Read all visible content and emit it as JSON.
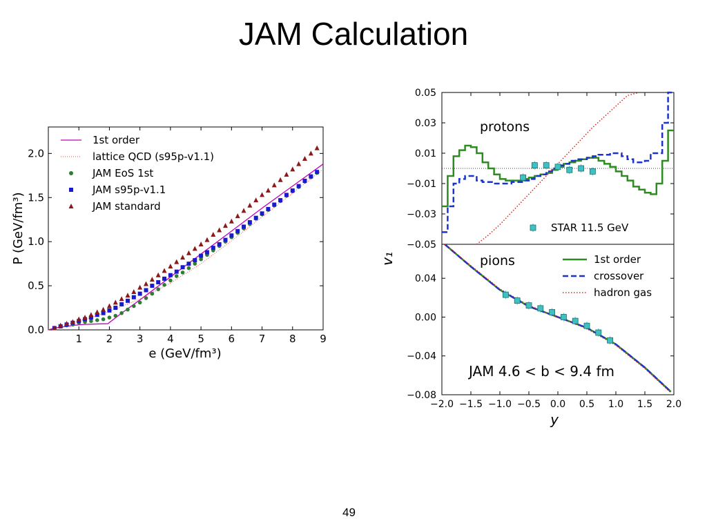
{
  "slide": {
    "title": "JAM Calculation",
    "page_number": "49"
  },
  "chart_data": [
    {
      "type": "line+scatter",
      "title": "",
      "xlabel": "e (GeV/fm³)",
      "ylabel": "P (GeV/fm³)",
      "xlim": [
        0,
        9
      ],
      "ylim": [
        0,
        2.3
      ],
      "x_ticks": [
        "1",
        "2",
        "3",
        "4",
        "5",
        "6",
        "7",
        "8",
        "9"
      ],
      "y_ticks": [
        "0.0",
        "0.5",
        "1.0",
        "1.5",
        "2.0"
      ],
      "legend": [
        "1st order",
        "lattice QCD (s95p-v1.1)",
        "JAM EoS 1st",
        "JAM s95p-v1.1",
        "JAM standard"
      ],
      "colors": {
        "first_order": "#bf00bf",
        "lattice": "#ff4040",
        "eos1st": "#2e7d32",
        "s95p": "#1a1acc",
        "standard": "#8b1a1a"
      },
      "series": [
        {
          "name": "1st order",
          "style": "line",
          "x": [
            0,
            0.2,
            0.5,
            0.8,
            1.1,
            1.4,
            1.7,
            1.95,
            2.4,
            3,
            4,
            5,
            6,
            7,
            8,
            9
          ],
          "y": [
            0,
            0.02,
            0.035,
            0.05,
            0.06,
            0.065,
            0.068,
            0.07,
            0.19,
            0.34,
            0.6,
            0.86,
            1.12,
            1.38,
            1.63,
            1.88
          ]
        },
        {
          "name": "lattice QCD (s95p-v1.1)",
          "style": "dotted",
          "x": [
            0,
            0.3,
            0.6,
            1,
            1.5,
            2,
            2.5,
            3,
            3.5,
            4,
            5,
            6,
            7,
            8,
            9
          ],
          "y": [
            0,
            0.03,
            0.06,
            0.1,
            0.15,
            0.21,
            0.28,
            0.35,
            0.44,
            0.53,
            0.75,
            1.01,
            1.28,
            1.55,
            1.82
          ]
        },
        {
          "name": "JAM EoS 1st",
          "style": "circle",
          "x": [
            0.2,
            0.4,
            0.6,
            0.8,
            1.0,
            1.2,
            1.4,
            1.6,
            1.8,
            2.0,
            2.2,
            2.4,
            2.6,
            2.8,
            3.0,
            3.2,
            3.4,
            3.6,
            3.8,
            4.0,
            4.2,
            4.4,
            4.6,
            4.8,
            5.0,
            5.2,
            5.4,
            5.6,
            5.8,
            6.0,
            6.2,
            6.4,
            6.6,
            6.8,
            7.0,
            7.2,
            7.4,
            7.6,
            7.8,
            8.0,
            8.2,
            8.4,
            8.6,
            8.8
          ],
          "y": [
            0.02,
            0.04,
            0.05,
            0.06,
            0.08,
            0.09,
            0.1,
            0.11,
            0.12,
            0.14,
            0.16,
            0.19,
            0.23,
            0.27,
            0.31,
            0.36,
            0.41,
            0.46,
            0.51,
            0.56,
            0.61,
            0.65,
            0.7,
            0.75,
            0.8,
            0.85,
            0.9,
            0.95,
            1.0,
            1.05,
            1.1,
            1.15,
            1.2,
            1.26,
            1.31,
            1.36,
            1.41,
            1.46,
            1.52,
            1.57,
            1.62,
            1.68,
            1.73,
            1.78
          ]
        },
        {
          "name": "JAM s95p-v1.1",
          "style": "square",
          "x": [
            0.2,
            0.4,
            0.6,
            0.8,
            1.0,
            1.2,
            1.4,
            1.6,
            1.8,
            2.0,
            2.2,
            2.4,
            2.6,
            2.8,
            3.0,
            3.2,
            3.4,
            3.6,
            3.8,
            4.0,
            4.2,
            4.4,
            4.6,
            4.8,
            5.0,
            5.2,
            5.4,
            5.6,
            5.8,
            6.0,
            6.2,
            6.4,
            6.6,
            6.8,
            7.0,
            7.2,
            7.4,
            7.6,
            7.8,
            8.0,
            8.2,
            8.4,
            8.6,
            8.8
          ],
          "y": [
            0.02,
            0.04,
            0.06,
            0.08,
            0.1,
            0.12,
            0.14,
            0.17,
            0.19,
            0.22,
            0.25,
            0.29,
            0.33,
            0.37,
            0.41,
            0.45,
            0.5,
            0.54,
            0.58,
            0.62,
            0.66,
            0.71,
            0.75,
            0.79,
            0.84,
            0.88,
            0.93,
            0.97,
            1.02,
            1.07,
            1.12,
            1.17,
            1.22,
            1.27,
            1.32,
            1.37,
            1.42,
            1.47,
            1.53,
            1.58,
            1.63,
            1.69,
            1.74,
            1.79
          ]
        },
        {
          "name": "JAM standard",
          "style": "triangle",
          "x": [
            0.2,
            0.4,
            0.6,
            0.8,
            1.0,
            1.2,
            1.4,
            1.6,
            1.8,
            2.0,
            2.2,
            2.4,
            2.6,
            2.8,
            3.0,
            3.2,
            3.4,
            3.6,
            3.8,
            4.0,
            4.2,
            4.4,
            4.6,
            4.8,
            5.0,
            5.2,
            5.4,
            5.6,
            5.8,
            6.0,
            6.2,
            6.4,
            6.6,
            6.8,
            7.0,
            7.2,
            7.4,
            7.6,
            7.8,
            8.0,
            8.2,
            8.4,
            8.6,
            8.8
          ],
          "y": [
            0.02,
            0.05,
            0.07,
            0.09,
            0.12,
            0.14,
            0.17,
            0.2,
            0.23,
            0.27,
            0.31,
            0.35,
            0.39,
            0.43,
            0.48,
            0.52,
            0.57,
            0.62,
            0.67,
            0.72,
            0.77,
            0.82,
            0.87,
            0.92,
            0.97,
            1.02,
            1.08,
            1.13,
            1.18,
            1.23,
            1.29,
            1.35,
            1.41,
            1.47,
            1.53,
            1.58,
            1.64,
            1.7,
            1.76,
            1.82,
            1.88,
            1.94,
            2.0,
            2.06
          ]
        }
      ]
    },
    {
      "type": "line+scatter",
      "panel": "protons",
      "ylabel": "v₁",
      "xlim": [
        -2,
        2
      ],
      "ylim": [
        -0.05,
        0.05
      ],
      "y_ticks": [
        "0.05",
        "0.03",
        "0.01",
        "−0.01",
        "−0.03",
        "−0.05"
      ],
      "y_tick_values": [
        0.05,
        0.03,
        0.01,
        -0.01,
        -0.03,
        -0.05
      ],
      "legend": [
        "STAR 11.5 GeV"
      ],
      "series": [
        {
          "name": "1st order",
          "style": "step",
          "color": "#2e8b22",
          "x": [
            -2.0,
            -1.9,
            -1.8,
            -1.7,
            -1.6,
            -1.5,
            -1.4,
            -1.3,
            -1.2,
            -1.1,
            -1.0,
            -0.9,
            -0.8,
            -0.7,
            -0.6,
            -0.5,
            -0.4,
            -0.3,
            -0.2,
            -0.1,
            0.0,
            0.1,
            0.2,
            0.3,
            0.4,
            0.5,
            0.6,
            0.7,
            0.8,
            0.9,
            1.0,
            1.1,
            1.2,
            1.3,
            1.4,
            1.5,
            1.6,
            1.7,
            1.8,
            1.9
          ],
          "y": [
            -0.025,
            -0.005,
            0.008,
            0.012,
            0.015,
            0.014,
            0.01,
            0.004,
            0.0,
            -0.004,
            -0.007,
            -0.008,
            -0.008,
            -0.008,
            -0.007,
            -0.006,
            -0.005,
            -0.004,
            -0.003,
            -0.001,
            0.001,
            0.003,
            0.004,
            0.005,
            0.006,
            0.007,
            0.007,
            0.005,
            0.003,
            0.001,
            -0.002,
            -0.005,
            -0.008,
            -0.012,
            -0.014,
            -0.016,
            -0.017,
            -0.01,
            0.005,
            0.025
          ]
        },
        {
          "name": "crossover",
          "style": "step-dashed",
          "color": "#1a33cc",
          "x": [
            -2.0,
            -1.9,
            -1.8,
            -1.7,
            -1.6,
            -1.5,
            -1.4,
            -1.3,
            -1.2,
            -1.1,
            -1.0,
            -0.9,
            -0.8,
            -0.7,
            -0.6,
            -0.5,
            -0.4,
            -0.3,
            -0.2,
            -0.1,
            0.0,
            0.1,
            0.2,
            0.3,
            0.4,
            0.5,
            0.6,
            0.7,
            0.8,
            0.9,
            1.0,
            1.1,
            1.2,
            1.3,
            1.4,
            1.5,
            1.6,
            1.7,
            1.8,
            1.9
          ],
          "y": [
            -0.042,
            -0.025,
            -0.01,
            -0.007,
            -0.005,
            -0.005,
            -0.008,
            -0.009,
            -0.009,
            -0.01,
            -0.01,
            -0.01,
            -0.009,
            -0.009,
            -0.008,
            -0.007,
            -0.005,
            -0.004,
            -0.002,
            0.0,
            0.002,
            0.003,
            0.005,
            0.006,
            0.006,
            0.007,
            0.008,
            0.009,
            0.009,
            0.01,
            0.01,
            0.008,
            0.006,
            0.004,
            0.004,
            0.005,
            0.01,
            0.01,
            0.03,
            0.05
          ]
        },
        {
          "name": "hadron gas",
          "style": "dotted",
          "color": "#d62020",
          "x": [
            -1.4,
            -1.2,
            -1.0,
            -0.8,
            -0.6,
            -0.4,
            -0.2,
            0.0,
            0.2,
            0.4,
            0.6,
            0.8,
            1.0,
            1.2,
            1.4
          ],
          "y": [
            -0.05,
            -0.044,
            -0.037,
            -0.029,
            -0.021,
            -0.013,
            -0.005,
            0.003,
            0.011,
            0.019,
            0.027,
            0.034,
            0.041,
            0.048,
            0.055
          ]
        },
        {
          "name": "STAR 11.5 GeV",
          "style": "square-errorbar",
          "color": "#40c0c0",
          "x": [
            -0.6,
            -0.4,
            -0.2,
            0.0,
            0.2,
            0.4,
            0.6
          ],
          "y": [
            -0.006,
            0.002,
            0.002,
            0.001,
            -0.001,
            0.0,
            -0.002
          ]
        }
      ]
    },
    {
      "type": "line+scatter",
      "panel": "pions",
      "xlabel": "y",
      "xlim": [
        -2,
        2
      ],
      "ylim": [
        -0.08,
        0.075
      ],
      "x_ticks": [
        "−2.0",
        "−1.5",
        "−1.0",
        "−0.5",
        "0.0",
        "0.5",
        "1.0",
        "1.5",
        "2.0"
      ],
      "x_tick_values": [
        -2.0,
        -1.5,
        -1.0,
        -0.5,
        0.0,
        0.5,
        1.0,
        1.5,
        2.0
      ],
      "y_ticks": [
        "0.04",
        "0.00",
        "−0.04",
        "−0.08"
      ],
      "y_tick_values": [
        0.04,
        0.0,
        -0.04,
        -0.08
      ],
      "legend": [
        "1st order",
        "crossover",
        "hadron gas"
      ],
      "annotation": "JAM 4.6 < b < 9.4 fm",
      "series": [
        {
          "name": "1st order",
          "style": "line",
          "color": "#2e8b22",
          "x": [
            -1.95,
            -1.5,
            -1.0,
            -0.5,
            0.0,
            0.5,
            1.0,
            1.5,
            1.95
          ],
          "y": [
            0.077,
            0.052,
            0.028,
            0.011,
            0.0,
            -0.011,
            -0.028,
            -0.052,
            -0.077
          ]
        },
        {
          "name": "crossover",
          "style": "dashed",
          "color": "#1a33cc",
          "x": [
            -1.95,
            -1.5,
            -1.0,
            -0.5,
            0.0,
            0.5,
            1.0,
            1.5,
            1.95
          ],
          "y": [
            0.077,
            0.052,
            0.028,
            0.011,
            0.0,
            -0.011,
            -0.028,
            -0.052,
            -0.077
          ]
        },
        {
          "name": "hadron gas",
          "style": "dotted",
          "color": "#d62020",
          "x": [
            -1.95,
            -1.5,
            -1.0,
            -0.5,
            0.0,
            0.5,
            1.0,
            1.5,
            1.95
          ],
          "y": [
            0.078,
            0.053,
            0.029,
            0.012,
            0.0,
            -0.012,
            -0.029,
            -0.053,
            -0.078
          ]
        },
        {
          "name": "STAR 11.5 GeV",
          "style": "square-errorbar",
          "color": "#40c0c0",
          "x": [
            -0.9,
            -0.7,
            -0.5,
            -0.3,
            -0.1,
            0.1,
            0.3,
            0.5,
            0.7,
            0.9
          ],
          "y": [
            0.023,
            0.017,
            0.012,
            0.009,
            0.005,
            0.0,
            -0.004,
            -0.009,
            -0.016,
            -0.024
          ]
        }
      ]
    }
  ],
  "right_labels": {
    "protons": "protons",
    "pions": "pions"
  }
}
